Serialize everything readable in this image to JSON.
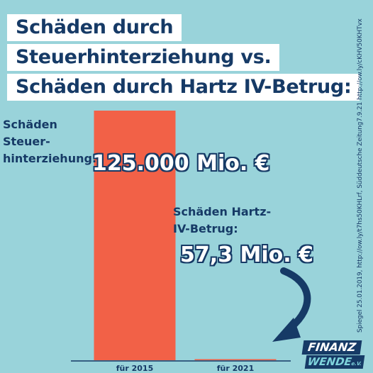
{
  "title": {
    "line1": "Schäden durch",
    "line2": "Steuerhinterziehung vs.",
    "line3": "Schäden durch Hartz IV-Betrug:"
  },
  "labels": {
    "steuer": [
      "Schäden",
      "Steuer-",
      "hinterziehung:"
    ],
    "hartz": [
      "Schäden Hartz-",
      "IV-Betrug:"
    ]
  },
  "values_text": {
    "steuer": "125.000 Mio. €",
    "hartz": "57,3 Mio. €"
  },
  "source": "Spiegel 25.01.2019,  http://ow.ly/t7hs50KHLrf, Süddeutsche Zeitung7.9.21 http://ow.ly/cKHV50KHTvx",
  "logo": {
    "top": "FINANZ",
    "bottom": "WENDE",
    "suffix": "e.V."
  },
  "colors": {
    "background": "#99d3da",
    "bar": "#f26147",
    "navy": "#163a66"
  },
  "chart_data": {
    "type": "bar",
    "categories": [
      "für 2015",
      "für 2021"
    ],
    "values": [
      125000,
      57.3
    ],
    "unit": "Mio. €",
    "ylim": [
      0,
      125000
    ],
    "grid": false,
    "legend": "none"
  }
}
